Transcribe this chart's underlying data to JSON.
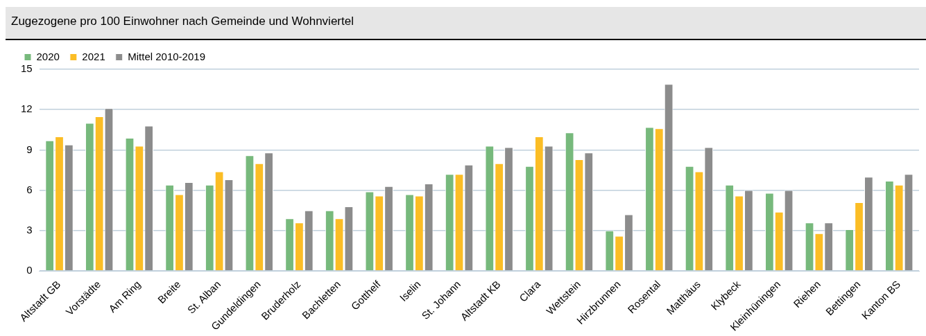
{
  "chart_data": {
    "type": "bar",
    "title": "Zugezogene pro 100 Einwohner nach Gemeinde und Wohnviertel",
    "categories": [
      "Altstadt GB",
      "Vorstädte",
      "Am Ring",
      "Breite",
      "St. Alban",
      "Gundeldingen",
      "Bruderholz",
      "Bachletten",
      "Gotthelf",
      "Iselin",
      "St. Johann",
      "Altstadt KB",
      "Clara",
      "Wettstein",
      "Hirzbrunnen",
      "Rosental",
      "Matthäus",
      "Klybeck",
      "Kleinhüningen",
      "Riehen",
      "Bettingen",
      "Kanton BS"
    ],
    "series": [
      {
        "name": "2020",
        "color": "#77b97c",
        "values": [
          9.7,
          11.0,
          9.9,
          6.4,
          6.4,
          8.6,
          3.9,
          4.5,
          5.9,
          5.7,
          7.2,
          9.3,
          7.8,
          10.3,
          3.0,
          10.7,
          7.8,
          6.4,
          5.8,
          3.6,
          3.1,
          6.7
        ]
      },
      {
        "name": "2021",
        "color": "#fbbd25",
        "values": [
          10.0,
          11.5,
          9.3,
          5.7,
          7.4,
          8.0,
          3.6,
          3.9,
          5.6,
          5.6,
          7.2,
          8.0,
          10.0,
          8.3,
          2.6,
          10.6,
          7.4,
          5.6,
          4.4,
          2.8,
          5.1,
          6.4
        ]
      },
      {
        "name": "Mittel 2010-2019",
        "color": "#8c8c8c",
        "values": [
          9.4,
          12.1,
          10.8,
          6.6,
          6.8,
          8.8,
          4.5,
          4.8,
          6.3,
          6.5,
          7.9,
          9.2,
          9.3,
          8.8,
          4.2,
          13.9,
          9.2,
          6.0,
          6.0,
          3.6,
          7.0,
          7.2
        ]
      }
    ],
    "ylim": [
      0,
      15
    ],
    "yticks": [
      0,
      3,
      6,
      9,
      12,
      15
    ],
    "grid": "y",
    "legend": "top left"
  }
}
